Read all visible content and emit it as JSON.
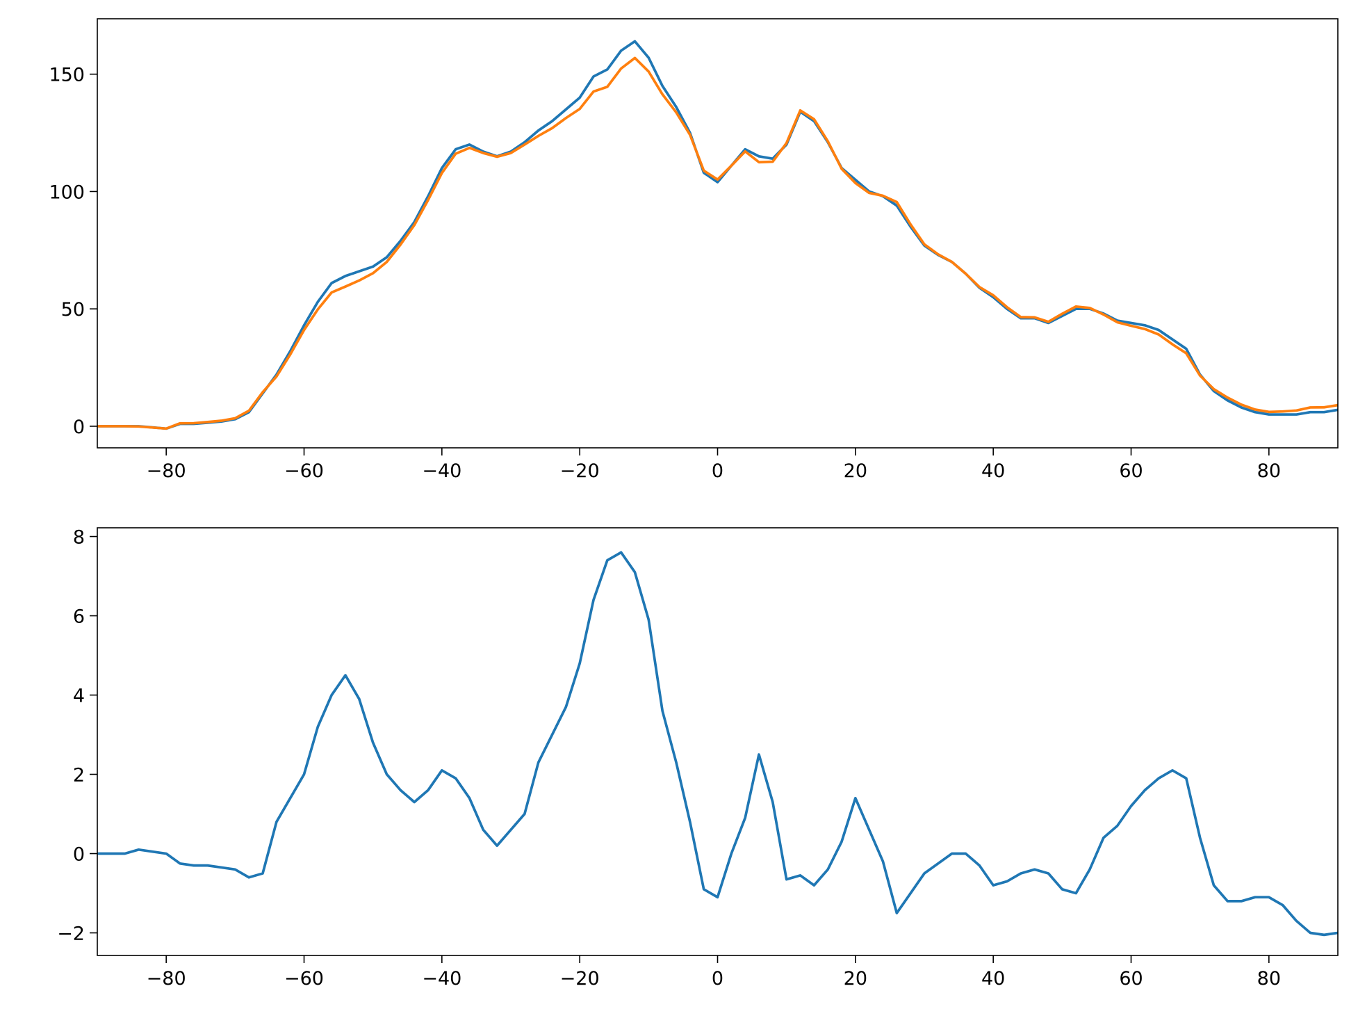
{
  "chart_data": [
    {
      "type": "line",
      "x": [
        -90,
        -88,
        -86,
        -84,
        -82,
        -80,
        -78,
        -76,
        -74,
        -72,
        -70,
        -68,
        -66,
        -64,
        -62,
        -60,
        -58,
        -56,
        -54,
        -52,
        -50,
        -48,
        -46,
        -44,
        -42,
        -40,
        -38,
        -36,
        -34,
        -32,
        -30,
        -28,
        -26,
        -24,
        -22,
        -20,
        -18,
        -16,
        -14,
        -12,
        -10,
        -8,
        -6,
        -4,
        -2,
        0,
        2,
        4,
        6,
        8,
        10,
        12,
        14,
        16,
        18,
        20,
        22,
        24,
        26,
        28,
        30,
        32,
        34,
        36,
        38,
        40,
        42,
        44,
        46,
        48,
        50,
        52,
        54,
        56,
        58,
        60,
        62,
        64,
        66,
        68,
        70,
        72,
        74,
        76,
        78,
        80,
        82,
        84,
        86,
        88,
        90
      ],
      "series": [
        {
          "color": "#1f77b4",
          "values": [
            0,
            0,
            0,
            0,
            -0.5,
            -1,
            1,
            1,
            1.5,
            2,
            3,
            6,
            14,
            22,
            32,
            43,
            53,
            61,
            64,
            66,
            68,
            72,
            79,
            87,
            98,
            110,
            118,
            120,
            117,
            115,
            117,
            121,
            126,
            130,
            135,
            140,
            149,
            152,
            160,
            164,
            157,
            145,
            136,
            125,
            108,
            104,
            111,
            118,
            115,
            114,
            120,
            134,
            130,
            121,
            110,
            105,
            100,
            98,
            94,
            85,
            77,
            73,
            70,
            65,
            59,
            55,
            50,
            46,
            46,
            44,
            47,
            50,
            50,
            48,
            45,
            44,
            43,
            41,
            37,
            33,
            22,
            15,
            11,
            8,
            6,
            5,
            5,
            5,
            6,
            6,
            7
          ]
        },
        {
          "color": "#ff7f0e",
          "values": [
            0,
            0,
            0,
            -0.1,
            -0.55,
            -1,
            1.25,
            1.3,
            1.8,
            2.35,
            3.4,
            6.6,
            14.5,
            21.2,
            30.6,
            41,
            49.8,
            57,
            59.5,
            62.1,
            65.2,
            70,
            77.4,
            85.7,
            96.4,
            107.9,
            116.1,
            118.6,
            116.4,
            114.8,
            116.4,
            120,
            123.7,
            127,
            131.3,
            135.2,
            142.6,
            144.6,
            152.4,
            156.9,
            151.1,
            141.4,
            133.7,
            124.2,
            108.9,
            105.1,
            111,
            117.1,
            112.5,
            112.7,
            120.65,
            134.55,
            130.8,
            121.4,
            109.7,
            103.6,
            99.4,
            98.2,
            95.5,
            86,
            77.5,
            73.25,
            70,
            65,
            59.3,
            55.8,
            50.7,
            46.5,
            46.4,
            44.5,
            47.9,
            51,
            50.4,
            47.6,
            44.3,
            42.8,
            41.4,
            39.1,
            34.9,
            31.1,
            21.6,
            15.8,
            12.2,
            9.2,
            7.1,
            6.1,
            6.3,
            6.7,
            8,
            8.05,
            9
          ]
        }
      ],
      "xlim": [
        -90,
        90
      ],
      "xticks": [
        {
          "value": -80,
          "label": "−80"
        },
        {
          "value": -60,
          "label": "−60"
        },
        {
          "value": -40,
          "label": "−40"
        },
        {
          "value": -20,
          "label": "−20"
        },
        0,
        20,
        40,
        60,
        80
      ],
      "ylim": [
        -9.2,
        173.6
      ],
      "yticks": [
        0,
        50,
        100,
        150
      ]
    },
    {
      "type": "line",
      "x": [
        -90,
        -88,
        -86,
        -84,
        -82,
        -80,
        -78,
        -76,
        -74,
        -72,
        -70,
        -68,
        -66,
        -64,
        -62,
        -60,
        -58,
        -56,
        -54,
        -52,
        -50,
        -48,
        -46,
        -44,
        -42,
        -40,
        -38,
        -36,
        -34,
        -32,
        -30,
        -28,
        -26,
        -24,
        -22,
        -20,
        -18,
        -16,
        -14,
        -12,
        -10,
        -8,
        -6,
        -4,
        -2,
        0,
        2,
        4,
        6,
        8,
        10,
        12,
        14,
        16,
        18,
        20,
        22,
        24,
        26,
        28,
        30,
        32,
        34,
        36,
        38,
        40,
        42,
        44,
        46,
        48,
        50,
        52,
        54,
        56,
        58,
        60,
        62,
        64,
        66,
        68,
        70,
        72,
        74,
        76,
        78,
        80,
        82,
        84,
        86,
        88,
        90
      ],
      "series": [
        {
          "color": "#1f77b4",
          "values": [
            0,
            0,
            0,
            0.1,
            0.05,
            0,
            -0.25,
            -0.3,
            -0.3,
            -0.35,
            -0.4,
            -0.6,
            -0.5,
            0.8,
            1.4,
            2.0,
            3.2,
            4.0,
            4.5,
            3.9,
            2.8,
            2.0,
            1.6,
            1.3,
            1.6,
            2.1,
            1.9,
            1.4,
            0.6,
            0.2,
            0.6,
            1.0,
            2.3,
            3.0,
            3.7,
            4.8,
            6.4,
            7.4,
            7.6,
            7.1,
            5.9,
            3.6,
            2.3,
            0.8,
            -0.9,
            -1.1,
            0,
            0.9,
            2.5,
            1.3,
            -0.65,
            -0.55,
            -0.8,
            -0.4,
            0.3,
            1.4,
            0.6,
            -0.2,
            -1.5,
            -1.0,
            -0.5,
            -0.25,
            0,
            0,
            -0.3,
            -0.8,
            -0.7,
            -0.5,
            -0.4,
            -0.5,
            -0.9,
            -1.0,
            -0.4,
            0.4,
            0.7,
            1.2,
            1.6,
            1.9,
            2.1,
            1.9,
            0.4,
            -0.8,
            -1.2,
            -1.2,
            -1.1,
            -1.1,
            -1.3,
            -1.7,
            -2.0,
            -2.05,
            -2.0
          ]
        }
      ],
      "xlim": [
        -90,
        90
      ],
      "xticks": [
        {
          "value": -80,
          "label": "−80"
        },
        {
          "value": -60,
          "label": "−60"
        },
        {
          "value": -40,
          "label": "−40"
        },
        {
          "value": -20,
          "label": "−20"
        },
        0,
        20,
        40,
        60,
        80
      ],
      "ylim": [
        -2.57,
        8.22
      ],
      "yticks": [
        {
          "value": -2,
          "label": "−2"
        },
        0,
        2,
        4,
        6,
        8
      ]
    }
  ]
}
